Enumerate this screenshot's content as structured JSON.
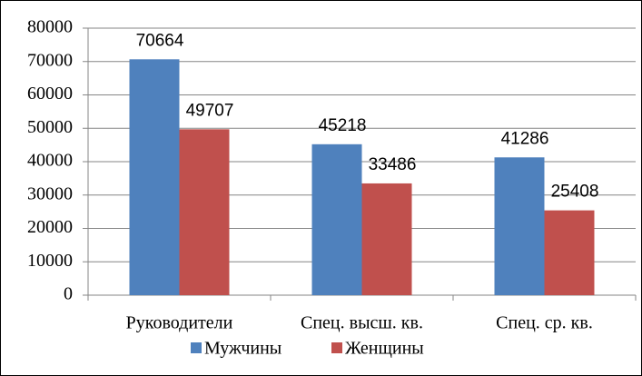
{
  "chart_data": {
    "type": "bar",
    "categories": [
      "Руководители",
      "Спец. высш. кв.",
      "Спец. ср. кв."
    ],
    "series": [
      {
        "name": "Мужчины",
        "color": "#4f81bd",
        "values": [
          70664,
          45218,
          41286
        ]
      },
      {
        "name": "Женщины",
        "color": "#c0504d",
        "values": [
          49707,
          33486,
          25408
        ]
      }
    ],
    "ylim": [
      0,
      80000
    ],
    "yticks": [
      0,
      10000,
      20000,
      30000,
      40000,
      50000,
      60000,
      70000,
      80000
    ],
    "grid": true,
    "legend": "bottom",
    "data_labels": true
  }
}
